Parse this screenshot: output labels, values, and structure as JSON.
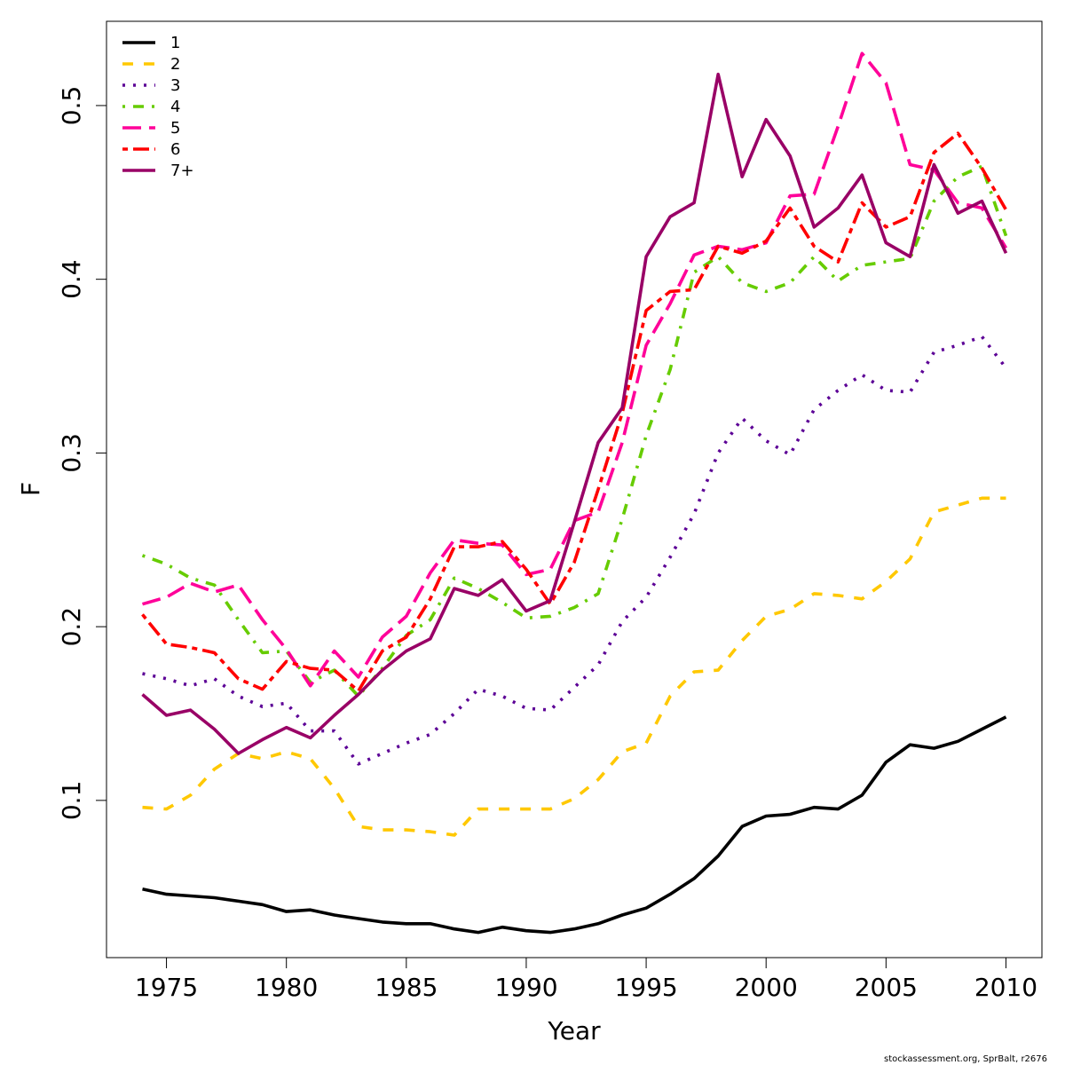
{
  "chart_data": {
    "type": "line",
    "title": "",
    "xlabel": "Year",
    "ylabel": "F",
    "xlim": [
      1972.5,
      2011.5
    ],
    "ylim": [
      0.0095,
      0.5485
    ],
    "x_ticks": [
      1975,
      1980,
      1985,
      1990,
      1995,
      2000,
      2005,
      2010
    ],
    "y_ticks": [
      0.1,
      0.2,
      0.3,
      0.4,
      0.5
    ],
    "x_tick_labels": [
      "1975",
      "1980",
      "1985",
      "1990",
      "1995",
      "2000",
      "2005",
      "2010"
    ],
    "y_tick_labels": [
      "0.1",
      "0.2",
      "0.3",
      "0.4",
      "0.5"
    ],
    "grid": false,
    "legend_position": "top-left",
    "x": [
      1974,
      1975,
      1976,
      1977,
      1978,
      1979,
      1980,
      1981,
      1982,
      1983,
      1984,
      1985,
      1986,
      1987,
      1988,
      1989,
      1990,
      1991,
      1992,
      1993,
      1994,
      1995,
      1996,
      1997,
      1998,
      1999,
      2000,
      2001,
      2002,
      2003,
      2004,
      2005,
      2006,
      2007,
      2008,
      2009,
      2010
    ],
    "series": [
      {
        "name": "1",
        "color": "#000000",
        "dash": "solid",
        "values": [
          0.049,
          0.046,
          0.045,
          0.044,
          0.042,
          0.04,
          0.036,
          0.037,
          0.034,
          0.032,
          0.03,
          0.029,
          0.029,
          0.026,
          0.024,
          0.027,
          0.025,
          0.024,
          0.026,
          0.029,
          0.034,
          0.038,
          0.046,
          0.055,
          0.068,
          0.085,
          0.091,
          0.092,
          0.096,
          0.095,
          0.103,
          0.122,
          0.132,
          0.13,
          0.134,
          0.141,
          0.148
        ]
      },
      {
        "name": "2",
        "color": "#FFC800",
        "dash": "dashed",
        "values": [
          0.096,
          0.095,
          0.103,
          0.118,
          0.127,
          0.124,
          0.128,
          0.124,
          0.107,
          0.085,
          0.083,
          0.083,
          0.082,
          0.08,
          0.095,
          0.095,
          0.095,
          0.095,
          0.101,
          0.112,
          0.128,
          0.133,
          0.16,
          0.174,
          0.175,
          0.192,
          0.206,
          0.21,
          0.219,
          0.218,
          0.216,
          0.226,
          0.239,
          0.266,
          0.27,
          0.274,
          0.274
        ]
      },
      {
        "name": "3",
        "color": "#5C0096",
        "dash": "dotted",
        "values": [
          0.173,
          0.17,
          0.166,
          0.17,
          0.16,
          0.154,
          0.156,
          0.14,
          0.14,
          0.121,
          0.127,
          0.133,
          0.138,
          0.15,
          0.164,
          0.16,
          0.153,
          0.152,
          0.165,
          0.178,
          0.203,
          0.217,
          0.24,
          0.265,
          0.3,
          0.32,
          0.307,
          0.299,
          0.325,
          0.336,
          0.345,
          0.336,
          0.335,
          0.358,
          0.362,
          0.367,
          0.349
        ]
      },
      {
        "name": "4",
        "color": "#66CC00",
        "dash": "dotdash",
        "values": [
          0.241,
          0.236,
          0.228,
          0.224,
          0.204,
          0.185,
          0.186,
          0.168,
          0.175,
          0.16,
          0.176,
          0.195,
          0.204,
          0.228,
          0.222,
          0.214,
          0.205,
          0.206,
          0.211,
          0.219,
          0.262,
          0.31,
          0.348,
          0.404,
          0.413,
          0.398,
          0.393,
          0.398,
          0.413,
          0.399,
          0.408,
          0.41,
          0.412,
          0.445,
          0.459,
          0.465,
          0.425
        ]
      },
      {
        "name": "5",
        "color": "#FF0099",
        "dash": "longdash",
        "values": [
          0.213,
          0.217,
          0.225,
          0.22,
          0.224,
          0.204,
          0.187,
          0.166,
          0.186,
          0.171,
          0.194,
          0.206,
          0.231,
          0.25,
          0.248,
          0.247,
          0.23,
          0.233,
          0.261,
          0.266,
          0.306,
          0.362,
          0.386,
          0.414,
          0.419,
          0.417,
          0.421,
          0.448,
          0.449,
          0.488,
          0.53,
          0.513,
          0.466,
          0.463,
          0.444,
          0.441,
          0.418
        ]
      },
      {
        "name": "6",
        "color": "#FF0000",
        "dash": "twodash",
        "values": [
          0.207,
          0.19,
          0.188,
          0.185,
          0.17,
          0.164,
          0.18,
          0.176,
          0.175,
          0.163,
          0.186,
          0.194,
          0.216,
          0.246,
          0.246,
          0.249,
          0.233,
          0.213,
          0.237,
          0.279,
          0.323,
          0.382,
          0.393,
          0.394,
          0.419,
          0.415,
          0.422,
          0.441,
          0.419,
          0.41,
          0.444,
          0.43,
          0.436,
          0.473,
          0.484,
          0.464,
          0.44
        ]
      },
      {
        "name": "7+",
        "color": "#990066",
        "dash": "solid",
        "values": [
          0.161,
          0.149,
          0.152,
          0.141,
          0.127,
          0.135,
          0.142,
          0.136,
          0.149,
          0.161,
          0.175,
          0.186,
          0.193,
          0.222,
          0.218,
          0.227,
          0.209,
          0.215,
          0.26,
          0.306,
          0.326,
          0.413,
          0.436,
          0.444,
          0.518,
          0.459,
          0.492,
          0.471,
          0.43,
          0.441,
          0.46,
          0.421,
          0.413,
          0.466,
          0.438,
          0.445,
          0.415
        ]
      }
    ]
  },
  "credit": "stockassessment.org, SprBalt, r2676"
}
